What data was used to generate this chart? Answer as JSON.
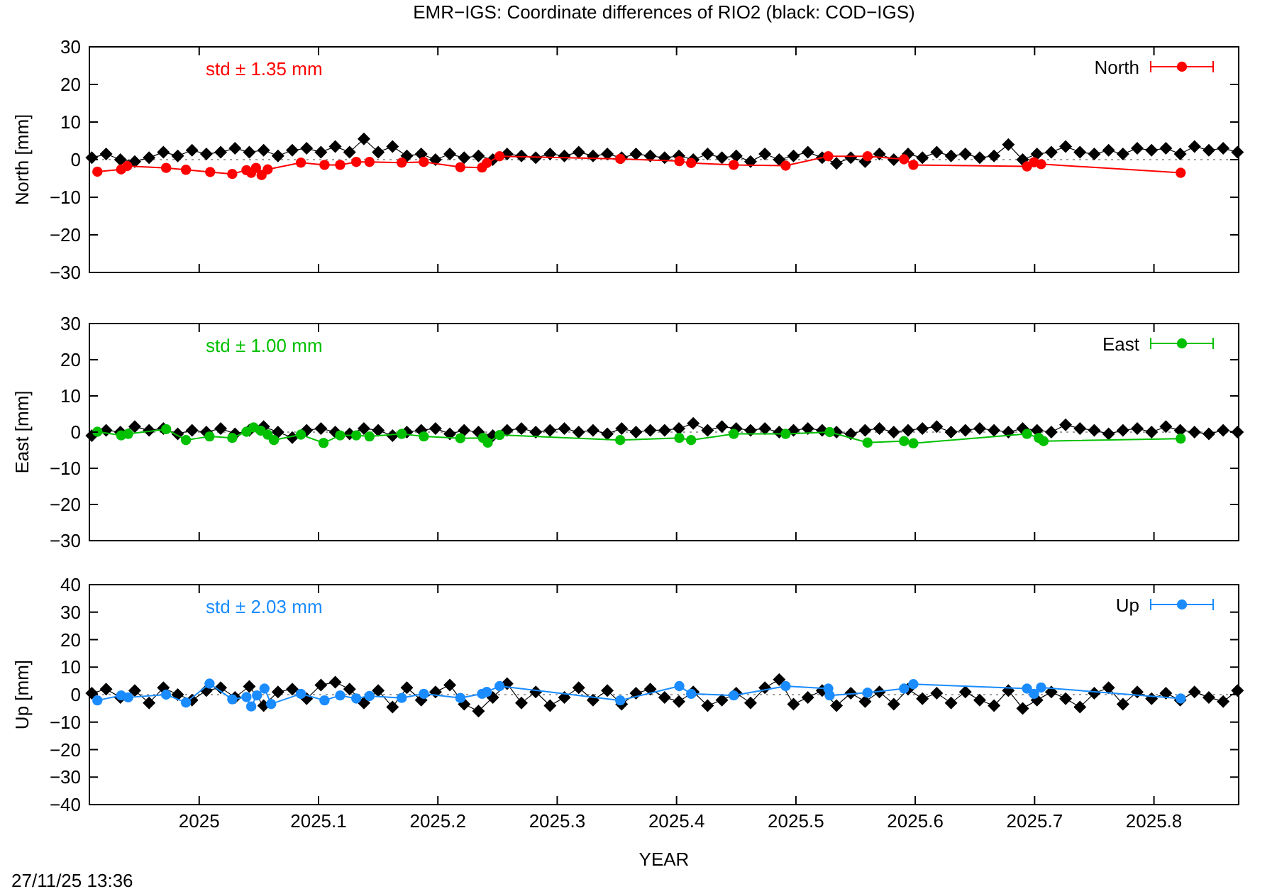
{
  "chart_data": [
    {
      "type": "line",
      "title": "EMR−IGS: Coordinate differences of RIO2 (black: COD−IGS)",
      "ylabel": "North [mm]",
      "xlim": [
        2024.908,
        2025.871
      ],
      "xticks": [
        2025,
        2025.1,
        2025.2,
        2025.3,
        2025.4,
        2025.5,
        2025.6,
        2025.7,
        2025.8
      ],
      "ylim": [
        -30,
        30
      ],
      "yticks": [
        {
          "value": -30,
          "label": "−30"
        },
        {
          "value": -20,
          "label": "−20"
        },
        {
          "value": -10,
          "label": "−10"
        },
        0,
        10,
        20,
        30
      ],
      "tick_labels": "y",
      "grid": false,
      "legend": "top right",
      "annotations": [
        "std ± 1.35 mm"
      ],
      "ref_lines": [
        {
          "axis": "y",
          "value": 0,
          "color": "#a0a0a0",
          "line_style": "dotted"
        }
      ],
      "series": [
        {
          "color": "#000000",
          "marker": "diamond",
          "x": [
            2024.91,
            2024.922,
            2024.934,
            2024.946,
            2024.958,
            2024.97,
            2024.982,
            2024.994,
            2025.006,
            2025.018,
            2025.03,
            2025.042,
            2025.054,
            2025.066,
            2025.078,
            2025.09,
            2025.102,
            2025.114,
            2025.126,
            2025.138,
            2025.15,
            2025.162,
            2025.174,
            2025.186,
            2025.198,
            2025.21,
            2025.222,
            2025.234,
            2025.246,
            2025.258,
            2025.27,
            2025.282,
            2025.294,
            2025.306,
            2025.318,
            2025.33,
            2025.342,
            2025.354,
            2025.366,
            2025.378,
            2025.39,
            2025.402,
            2025.414,
            2025.426,
            2025.438,
            2025.45,
            2025.462,
            2025.474,
            2025.486,
            2025.498,
            2025.51,
            2025.522,
            2025.534,
            2025.546,
            2025.558,
            2025.57,
            2025.582,
            2025.594,
            2025.606,
            2025.618,
            2025.63,
            2025.642,
            2025.654,
            2025.666,
            2025.678,
            2025.69,
            2025.702,
            2025.714,
            2025.726,
            2025.738,
            2025.75,
            2025.762,
            2025.774,
            2025.786,
            2025.798,
            2025.81,
            2025.822,
            2025.834,
            2025.846,
            2025.858,
            2025.87
          ],
          "values": [
            0.5,
            1.5,
            0.0,
            -0.5,
            0.5,
            2.0,
            1.0,
            2.5,
            1.5,
            2.0,
            3.0,
            2.0,
            2.5,
            1.0,
            2.5,
            3.0,
            2.0,
            3.5,
            2.0,
            5.5,
            2.0,
            3.5,
            1.0,
            1.5,
            0.0,
            1.5,
            0.5,
            1.0,
            0.0,
            1.5,
            1.0,
            0.5,
            1.5,
            1.0,
            2.0,
            1.0,
            1.5,
            0.5,
            1.5,
            1.0,
            0.5,
            1.0,
            0.0,
            1.5,
            0.5,
            1.0,
            -0.5,
            1.5,
            0.0,
            1.0,
            2.0,
            0.5,
            -1.0,
            0.5,
            -0.5,
            1.5,
            0.0,
            1.5,
            0.5,
            2.0,
            1.0,
            1.5,
            0.5,
            1.0,
            4.0,
            0.0,
            1.5,
            2.0,
            3.5,
            2.0,
            1.5,
            2.5,
            1.5,
            3.0,
            2.5,
            3.0,
            1.5,
            3.5,
            2.5,
            3.0,
            2.0
          ]
        },
        {
          "name": "North",
          "color": "#ff0000",
          "marker": "circle",
          "x": [
            2024.9147,
            2024.9346,
            2024.9397,
            2024.9723,
            2024.9889,
            2025.0092,
            2025.0277,
            2025.0396,
            2025.0436,
            2025.0476,
            2025.0523,
            2025.0574,
            2025.0852,
            2025.105,
            2025.1181,
            2025.1316,
            2025.1427,
            2025.1697,
            2025.1882,
            2025.2188,
            2025.237,
            2025.241,
            2025.2517,
            2025.3528,
            2025.4023,
            2025.4122,
            2025.4479,
            2025.4914,
            2025.5271,
            2025.56,
            2025.5906,
            2025.5984,
            2025.6936,
            2025.6995,
            2025.7054,
            2025.8224
          ],
          "values": [
            -3.2,
            -2.6,
            -1.7,
            -2.2,
            -2.7,
            -3.3,
            -3.8,
            -2.8,
            -3.5,
            -2.2,
            -4.1,
            -2.6,
            -0.8,
            -1.4,
            -1.4,
            -0.6,
            -0.6,
            -0.8,
            -0.6,
            -2.0,
            -2.1,
            -0.9,
            0.9,
            0.2,
            -0.4,
            -0.9,
            -1.4,
            -1.6,
            0.9,
            0.9,
            0.1,
            -1.4,
            -1.8,
            -0.7,
            -1.2,
            -3.5
          ]
        }
      ]
    },
    {
      "type": "line",
      "ylabel": "East [mm]",
      "xlim": [
        2024.908,
        2025.871
      ],
      "xticks": [
        2025,
        2025.1,
        2025.2,
        2025.3,
        2025.4,
        2025.5,
        2025.6,
        2025.7,
        2025.8
      ],
      "ylim": [
        -30,
        30
      ],
      "yticks": [
        {
          "value": -30,
          "label": "−30"
        },
        {
          "value": -20,
          "label": "−20"
        },
        {
          "value": -10,
          "label": "−10"
        },
        0,
        10,
        20,
        30
      ],
      "tick_labels": "y",
      "grid": false,
      "legend": "top right",
      "annotations": [
        "std ± 1.00 mm"
      ],
      "ref_lines": [
        {
          "axis": "y",
          "value": 0,
          "color": "#a0a0a0",
          "line_style": "dotted"
        }
      ],
      "series": [
        {
          "color": "#000000",
          "marker": "diamond",
          "x": [
            2024.91,
            2024.922,
            2024.934,
            2024.946,
            2024.958,
            2024.97,
            2024.982,
            2024.994,
            2025.006,
            2025.018,
            2025.03,
            2025.042,
            2025.054,
            2025.066,
            2025.078,
            2025.09,
            2025.102,
            2025.114,
            2025.126,
            2025.138,
            2025.15,
            2025.162,
            2025.174,
            2025.186,
            2025.198,
            2025.21,
            2025.222,
            2025.234,
            2025.246,
            2025.258,
            2025.27,
            2025.282,
            2025.294,
            2025.306,
            2025.318,
            2025.33,
            2025.342,
            2025.354,
            2025.366,
            2025.378,
            2025.39,
            2025.402,
            2025.414,
            2025.426,
            2025.438,
            2025.45,
            2025.462,
            2025.474,
            2025.486,
            2025.498,
            2025.51,
            2025.522,
            2025.534,
            2025.546,
            2025.558,
            2025.57,
            2025.582,
            2025.594,
            2025.606,
            2025.618,
            2025.63,
            2025.642,
            2025.654,
            2025.666,
            2025.678,
            2025.69,
            2025.702,
            2025.714,
            2025.726,
            2025.738,
            2025.75,
            2025.762,
            2025.774,
            2025.786,
            2025.798,
            2025.81,
            2025.822,
            2025.834,
            2025.846,
            2025.858,
            2025.87
          ],
          "values": [
            -1.0,
            0.5,
            0.0,
            1.5,
            0.5,
            1.0,
            -0.5,
            0.5,
            0.0,
            1.0,
            -0.5,
            0.5,
            1.5,
            0.0,
            -1.5,
            0.5,
            1.0,
            0.0,
            -0.5,
            1.0,
            0.5,
            -1.0,
            0.0,
            0.5,
            1.0,
            -0.5,
            0.5,
            0.0,
            -1.0,
            0.5,
            1.0,
            0.0,
            0.5,
            1.0,
            0.0,
            0.5,
            -0.5,
            1.0,
            0.0,
            0.5,
            0.5,
            1.0,
            2.4,
            0.5,
            1.5,
            1.0,
            0.5,
            1.0,
            0.0,
            0.5,
            1.0,
            0.5,
            0.0,
            -0.5,
            0.5,
            1.0,
            0.0,
            0.5,
            1.0,
            1.5,
            0.0,
            0.5,
            1.0,
            0.5,
            0.0,
            1.0,
            0.5,
            0.0,
            2.0,
            1.0,
            0.5,
            -0.5,
            0.5,
            1.0,
            0.0,
            1.5,
            0.5,
            0.0,
            -0.5,
            0.5,
            0.0
          ]
        },
        {
          "name": "East",
          "color": "#00c000",
          "marker": "circle",
          "x": [
            2024.9147,
            2024.9346,
            2024.9405,
            2024.9723,
            2024.9889,
            2025.0087,
            2025.0277,
            2025.0396,
            2025.0456,
            2025.0515,
            2025.0574,
            2025.0626,
            2025.0852,
            2025.1042,
            2025.1181,
            2025.1316,
            2025.1427,
            2025.1697,
            2025.1882,
            2025.2188,
            2025.2378,
            2025.2418,
            2025.2517,
            2025.3528,
            2025.4023,
            2025.4122,
            2025.4479,
            2025.4914,
            2025.5283,
            2025.56,
            2025.5906,
            2025.5984,
            2025.6936,
            2025.7035,
            2025.7075,
            2025.8224
          ],
          "values": [
            0.1,
            -0.9,
            -0.5,
            0.8,
            -2.2,
            -1.2,
            -1.6,
            0.1,
            1.3,
            0.4,
            -0.7,
            -2.2,
            -0.7,
            -3.0,
            -0.9,
            -0.9,
            -1.2,
            -0.5,
            -1.2,
            -1.7,
            -1.6,
            -2.9,
            -0.8,
            -2.2,
            -1.6,
            -2.2,
            -0.5,
            -0.5,
            0.0,
            -2.9,
            -2.5,
            -3.1,
            -0.5,
            -1.6,
            -2.5,
            -1.8
          ]
        }
      ]
    },
    {
      "type": "line",
      "xlabel": "YEAR",
      "ylabel": "Up [mm]",
      "xlim": [
        2024.908,
        2025.871
      ],
      "xticks": [
        2025,
        2025.1,
        2025.2,
        2025.3,
        2025.4,
        2025.5,
        2025.6,
        2025.7,
        2025.8
      ],
      "ylim": [
        -40,
        40
      ],
      "yticks": [
        {
          "value": -40,
          "label": "−40"
        },
        {
          "value": -30,
          "label": "−30"
        },
        {
          "value": -20,
          "label": "−20"
        },
        {
          "value": -10,
          "label": "−10"
        },
        0,
        10,
        20,
        30,
        40
      ],
      "grid": false,
      "legend": "top right",
      "annotations": [
        "std ± 2.03 mm",
        "27/11/25 13:36"
      ],
      "ref_lines": [
        {
          "axis": "y",
          "value": 0,
          "color": "#a0a0a0",
          "line_style": "dotted"
        }
      ],
      "series": [
        {
          "color": "#000000",
          "marker": "diamond",
          "x": [
            2024.91,
            2024.922,
            2024.934,
            2024.946,
            2024.958,
            2024.97,
            2024.982,
            2024.994,
            2025.006,
            2025.018,
            2025.03,
            2025.042,
            2025.054,
            2025.066,
            2025.078,
            2025.09,
            2025.102,
            2025.114,
            2025.126,
            2025.138,
            2025.15,
            2025.162,
            2025.174,
            2025.186,
            2025.198,
            2025.21,
            2025.222,
            2025.234,
            2025.246,
            2025.258,
            2025.27,
            2025.282,
            2025.294,
            2025.306,
            2025.318,
            2025.33,
            2025.342,
            2025.354,
            2025.366,
            2025.378,
            2025.39,
            2025.402,
            2025.414,
            2025.426,
            2025.438,
            2025.45,
            2025.462,
            2025.474,
            2025.486,
            2025.498,
            2025.51,
            2025.522,
            2025.534,
            2025.546,
            2025.558,
            2025.57,
            2025.582,
            2025.594,
            2025.606,
            2025.618,
            2025.63,
            2025.642,
            2025.654,
            2025.666,
            2025.678,
            2025.69,
            2025.702,
            2025.714,
            2025.726,
            2025.738,
            2025.75,
            2025.762,
            2025.774,
            2025.786,
            2025.798,
            2025.81,
            2025.822,
            2025.834,
            2025.846,
            2025.858,
            2025.87
          ],
          "values": [
            0.5,
            2.0,
            -1.0,
            1.5,
            -3.0,
            2.5,
            0.0,
            -2.0,
            1.5,
            2.5,
            -1.0,
            3.0,
            -4.0,
            1.0,
            2.0,
            -1.5,
            3.5,
            4.5,
            2.0,
            -3.0,
            1.5,
            -4.5,
            2.5,
            -2.0,
            1.0,
            3.5,
            -3.5,
            -6.0,
            -1.0,
            4.0,
            -3.0,
            1.0,
            -4.0,
            -1.0,
            2.5,
            -2.0,
            1.5,
            -3.5,
            0.5,
            2.0,
            -1.0,
            -2.5,
            1.0,
            -4.0,
            -2.0,
            0.5,
            -3.0,
            2.5,
            5.5,
            -3.5,
            -1.0,
            1.5,
            -4.0,
            0.5,
            -2.5,
            1.0,
            -3.5,
            2.0,
            -1.5,
            0.5,
            -3.0,
            1.0,
            -2.0,
            -4.0,
            1.5,
            -5.0,
            -2.0,
            1.0,
            -1.5,
            -4.5,
            0.5,
            2.5,
            -3.5,
            1.0,
            -1.5,
            0.5,
            -2.0,
            1.0,
            -1.0,
            -2.5,
            1.5
          ]
        },
        {
          "name": "Up",
          "color": "#1a8cff",
          "marker": "circle",
          "x": [
            2024.9147,
            2024.9346,
            2024.9405,
            2024.9723,
            2024.9889,
            2025.0087,
            2025.0277,
            2025.0396,
            2025.0436,
            2025.0484,
            2025.0547,
            2025.0603,
            2025.0852,
            2025.105,
            2025.1181,
            2025.1316,
            2025.1427,
            2025.1697,
            2025.1882,
            2025.2188,
            2025.237,
            2025.241,
            2025.2517,
            2025.3528,
            2025.4023,
            2025.4122,
            2025.4479,
            2025.4914,
            2025.5271,
            2025.5283,
            2025.56,
            2025.5906,
            2025.5984,
            2025.6936,
            2025.6995,
            2025.7054,
            2025.8224
          ],
          "values": [
            -2.1,
            -0.3,
            -1.0,
            0.0,
            -2.9,
            4.0,
            -1.7,
            -0.9,
            -4.3,
            -0.3,
            2.2,
            -3.4,
            0.3,
            -2.1,
            -0.3,
            -1.4,
            -0.5,
            -1.2,
            0.3,
            -1.2,
            0.3,
            1.0,
            3.1,
            -2.1,
            3.1,
            0.3,
            -0.3,
            3.1,
            2.2,
            -0.3,
            0.7,
            2.2,
            3.8,
            2.2,
            0.3,
            2.6,
            -1.4
          ]
        }
      ]
    }
  ]
}
